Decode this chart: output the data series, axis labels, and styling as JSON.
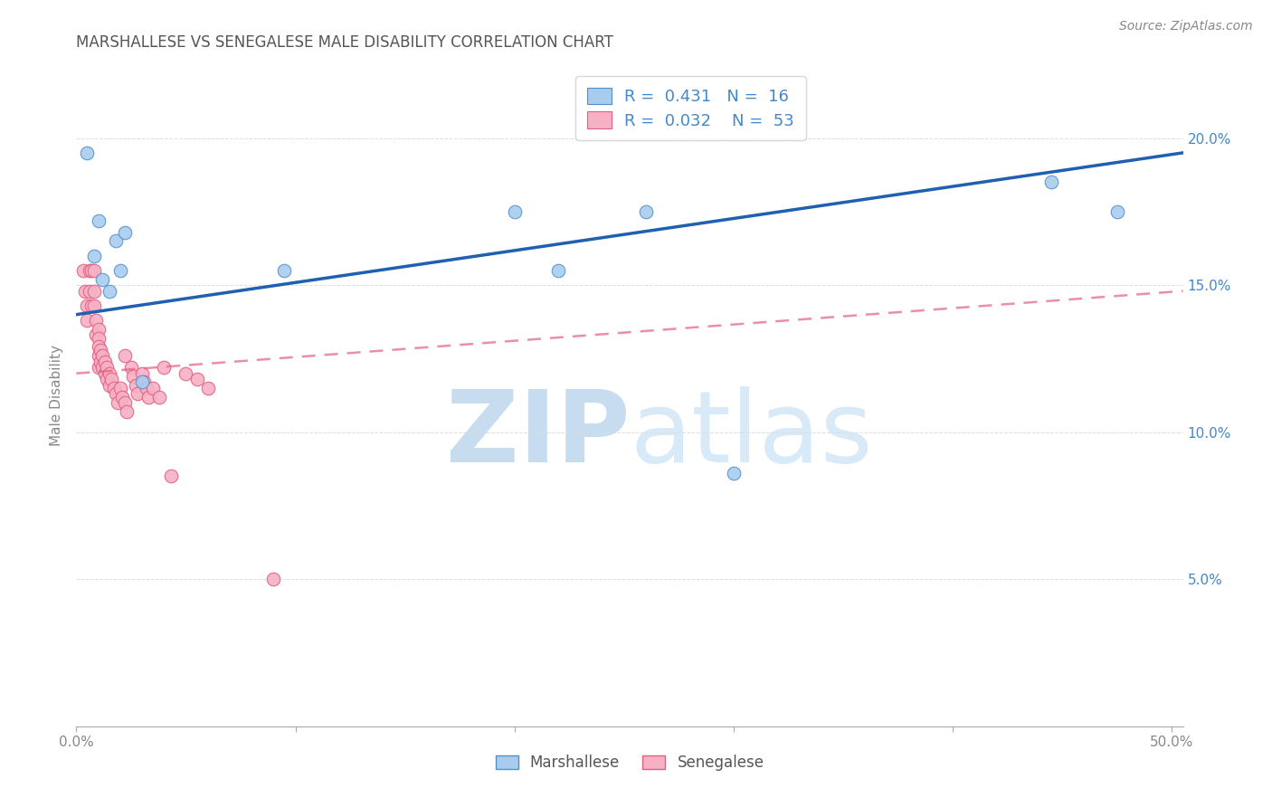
{
  "title": "MARSHALLESE VS SENEGALESE MALE DISABILITY CORRELATION CHART",
  "source": "Source: ZipAtlas.com",
  "ylabel": "Male Disability",
  "y_ticks": [
    0.0,
    0.05,
    0.1,
    0.15,
    0.2
  ],
  "x_ticks": [
    0.0,
    0.1,
    0.2,
    0.3,
    0.4,
    0.5
  ],
  "xlim": [
    0.0,
    0.505
  ],
  "ylim": [
    0.0,
    0.225
  ],
  "marshallese_x": [
    0.005,
    0.008,
    0.01,
    0.012,
    0.015,
    0.018,
    0.02,
    0.022,
    0.03,
    0.095,
    0.2,
    0.22,
    0.26,
    0.3,
    0.445,
    0.475
  ],
  "marshallese_y": [
    0.195,
    0.16,
    0.172,
    0.152,
    0.148,
    0.165,
    0.155,
    0.168,
    0.117,
    0.155,
    0.175,
    0.155,
    0.175,
    0.086,
    0.185,
    0.175
  ],
  "senegalese_x": [
    0.003,
    0.004,
    0.005,
    0.005,
    0.006,
    0.006,
    0.007,
    0.007,
    0.008,
    0.008,
    0.008,
    0.009,
    0.009,
    0.01,
    0.01,
    0.01,
    0.01,
    0.01,
    0.011,
    0.011,
    0.012,
    0.012,
    0.013,
    0.013,
    0.014,
    0.014,
    0.015,
    0.015,
    0.016,
    0.017,
    0.018,
    0.019,
    0.02,
    0.021,
    0.022,
    0.023,
    0.025,
    0.026,
    0.027,
    0.028,
    0.03,
    0.031,
    0.032,
    0.033,
    0.035,
    0.038,
    0.04,
    0.043,
    0.05,
    0.055,
    0.06,
    0.022,
    0.09
  ],
  "senegalese_y": [
    0.155,
    0.148,
    0.143,
    0.138,
    0.155,
    0.148,
    0.155,
    0.143,
    0.155,
    0.148,
    0.143,
    0.138,
    0.133,
    0.135,
    0.132,
    0.129,
    0.126,
    0.122,
    0.128,
    0.124,
    0.126,
    0.122,
    0.124,
    0.12,
    0.122,
    0.118,
    0.12,
    0.116,
    0.118,
    0.115,
    0.113,
    0.11,
    0.115,
    0.112,
    0.11,
    0.107,
    0.122,
    0.119,
    0.116,
    0.113,
    0.12,
    0.117,
    0.115,
    0.112,
    0.115,
    0.112,
    0.122,
    0.085,
    0.12,
    0.118,
    0.115,
    0.126,
    0.05
  ],
  "marshallese_color": "#A8CCEE",
  "senegalese_color": "#F8B0C5",
  "marshallese_edge_color": "#5590CC",
  "senegalese_edge_color": "#E06080",
  "blue_line_color": "#2060B0",
  "pink_line_color": "#E06080",
  "R_marshallese": "0.431",
  "N_marshallese": "16",
  "R_senegalese": "0.032",
  "N_senegalese": "53",
  "background_color": "#FFFFFF",
  "grid_color": "#DDDDDD",
  "title_color": "#555555",
  "watermark_color": "#C8DCF0",
  "legend_label_marshallese": "Marshallese",
  "legend_label_senegalese": "Senegalese",
  "blue_line_y0": 0.14,
  "blue_line_y1": 0.195,
  "pink_line_y0": 0.12,
  "pink_line_y1": 0.148
}
